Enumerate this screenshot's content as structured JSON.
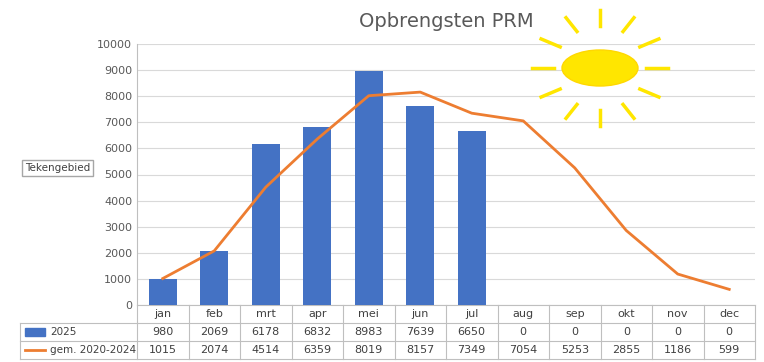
{
  "chart_data": {
    "type": "bar",
    "title": "Opbrengsten PRM",
    "annotation": "Tekengebied",
    "categories": [
      "jan",
      "feb",
      "mrt",
      "apr",
      "mei",
      "jun",
      "jul",
      "aug",
      "sep",
      "okt",
      "nov",
      "dec"
    ],
    "series": [
      {
        "name": "2025",
        "type": "bar",
        "color": "#4472c4",
        "values": [
          980,
          2069,
          6178,
          6832,
          8983,
          7639,
          6650,
          0,
          0,
          0,
          0,
          0
        ]
      },
      {
        "name": "gem. 2020-2024",
        "type": "line",
        "color": "#ed7d31",
        "values": [
          1015,
          2074,
          4514,
          6359,
          8019,
          8157,
          7349,
          7054,
          5253,
          2855,
          1186,
          599
        ]
      }
    ],
    "ylim": [
      0,
      10000
    ],
    "yticks": [
      0,
      1000,
      2000,
      3000,
      4000,
      5000,
      6000,
      7000,
      8000,
      9000,
      10000
    ],
    "grid": true
  }
}
